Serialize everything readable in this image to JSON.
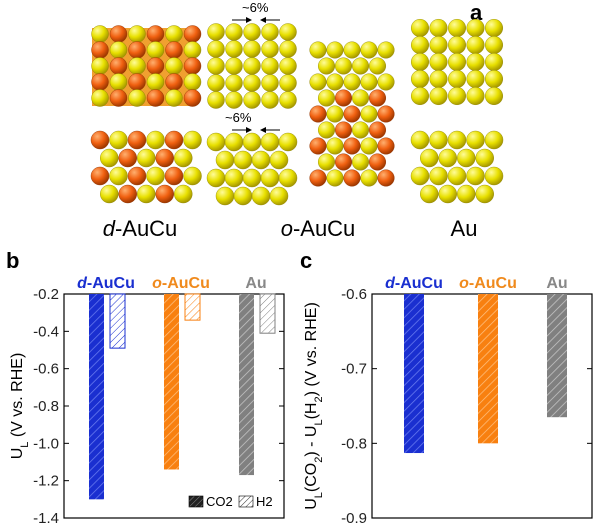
{
  "panel_a": {
    "letter": "a",
    "strain_label_top": "~6%",
    "strain_label_bottom": "~6%",
    "materials": [
      {
        "prefix": "d",
        "suffix": "-AuCu",
        "color": "#1f5fbf"
      },
      {
        "prefix": "o",
        "suffix": "-AuCu",
        "color": "#f08a1c"
      },
      {
        "prefix": "",
        "suffix": "Au",
        "color": "#555555"
      }
    ],
    "atom_colors": {
      "au": "#e8e000",
      "cu": "#f06010",
      "bg": "#f0a030"
    }
  },
  "chart_data": [
    {
      "id": "b",
      "letter": "b",
      "type": "bar",
      "categories": [
        "d-AuCu",
        "o-AuCu",
        "Au"
      ],
      "category_labels": [
        {
          "prefix": "d",
          "suffix": "-AuCu",
          "color": "#1a2fd0"
        },
        {
          "prefix": "o",
          "suffix": "-AuCu",
          "color": "#f08a1c"
        },
        {
          "prefix": "",
          "suffix": "Au",
          "color": "#888888"
        }
      ],
      "series": [
        {
          "name": "CO2",
          "values": [
            -1.3,
            -1.14,
            -1.17
          ]
        },
        {
          "name": "H2",
          "values": [
            -0.49,
            -0.34,
            -0.41
          ]
        }
      ],
      "colors": [
        "#1a2fd0",
        "#f88010",
        "#808080"
      ],
      "ylabel": "U_L (V vs. RHE)",
      "ylim": [
        -1.4,
        -0.2
      ],
      "yticks": [
        "-0.2",
        "-0.4",
        "-0.6",
        "-0.8",
        "-1.0",
        "-1.2",
        "-1.4"
      ],
      "legend": {
        "position": "bottom-right",
        "co2": "CO2",
        "h2": "H2"
      }
    },
    {
      "id": "c",
      "letter": "c",
      "type": "bar",
      "categories": [
        "d-AuCu",
        "o-AuCu",
        "Au"
      ],
      "category_labels": [
        {
          "prefix": "d",
          "suffix": "-AuCu",
          "color": "#1a2fd0"
        },
        {
          "prefix": "o",
          "suffix": "-AuCu",
          "color": "#f08a1c"
        },
        {
          "prefix": "",
          "suffix": "Au",
          "color": "#888888"
        }
      ],
      "values": [
        -0.813,
        -0.8,
        -0.765
      ],
      "colors": [
        "#1a2fd0",
        "#f88010",
        "#808080"
      ],
      "ylabel": "U_L(CO2) - U_L(H2) (V vs. RHE)",
      "ylim": [
        -0.9,
        -0.6
      ],
      "yticks": [
        "-0.6",
        "-0.7",
        "-0.8",
        "-0.9"
      ]
    }
  ]
}
